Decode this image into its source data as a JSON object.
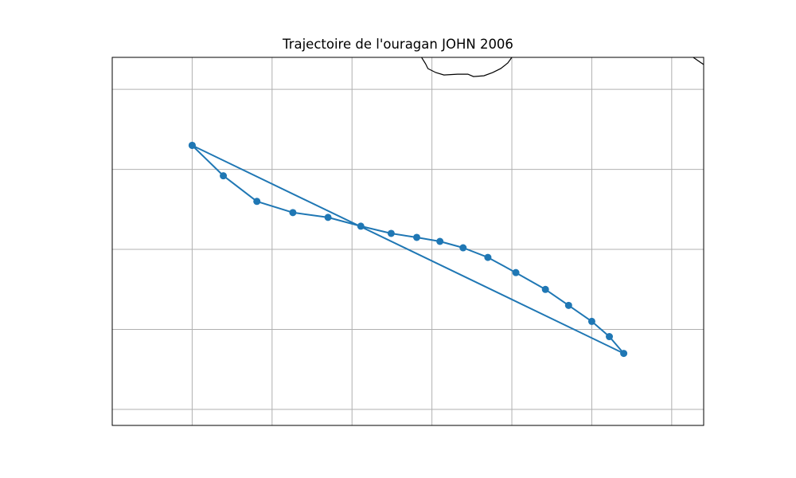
{
  "title": "Trajectoire de l'ouragan JOHN 2006",
  "colors": {
    "track": "#1f77b4",
    "grid": "#b0b0b0",
    "coastline": "#000000",
    "frame": "#000000"
  },
  "map": {
    "projection": "Plate Carree",
    "extent": {
      "lon": [
        -120,
        -46
      ],
      "lat": [
        8,
        54
      ]
    },
    "grid": true,
    "gridlines": {
      "lon": [
        -110,
        -100,
        -90,
        -80,
        -70,
        -60,
        -50
      ],
      "lat": [
        10,
        20,
        30,
        40,
        50
      ]
    },
    "coastline": [
      [
        -81.3,
        54
      ],
      [
        -80.8,
        53.2
      ],
      [
        -80.5,
        52.6
      ],
      [
        -79.5,
        52.1
      ],
      [
        -78.5,
        51.8
      ],
      [
        -76.8,
        51.9
      ],
      [
        -75.5,
        51.9
      ],
      [
        -74.8,
        51.6
      ],
      [
        -73.5,
        51.7
      ],
      [
        -72.4,
        52.1
      ],
      [
        -71.4,
        52.6
      ],
      [
        -70.5,
        53.3
      ],
      [
        -70.0,
        54
      ]
    ],
    "coastline_right": [
      [
        -47.3,
        54
      ],
      [
        -46.3,
        53.3
      ],
      [
        -46,
        53.1
      ]
    ]
  },
  "track": {
    "name": "JOHN 2006",
    "points": [
      {
        "lon": -110.0,
        "lat": 43.0
      },
      {
        "lon": -106.1,
        "lat": 39.2
      },
      {
        "lon": -101.9,
        "lat": 36.0
      },
      {
        "lon": -97.4,
        "lat": 34.6
      },
      {
        "lon": -93.0,
        "lat": 34.0
      },
      {
        "lon": -88.9,
        "lat": 32.9
      },
      {
        "lon": -85.1,
        "lat": 32.0
      },
      {
        "lon": -81.9,
        "lat": 31.5
      },
      {
        "lon": -79.0,
        "lat": 31.0
      },
      {
        "lon": -76.1,
        "lat": 30.2
      },
      {
        "lon": -73.0,
        "lat": 29.0
      },
      {
        "lon": -69.5,
        "lat": 27.1
      },
      {
        "lon": -65.8,
        "lat": 25.0
      },
      {
        "lon": -62.9,
        "lat": 23.0
      },
      {
        "lon": -60.0,
        "lat": 21.0
      },
      {
        "lon": -57.8,
        "lat": 19.1
      },
      {
        "lon": -56.0,
        "lat": 17.0
      },
      {
        "lon": -110.0,
        "lat": 43.0
      }
    ]
  }
}
